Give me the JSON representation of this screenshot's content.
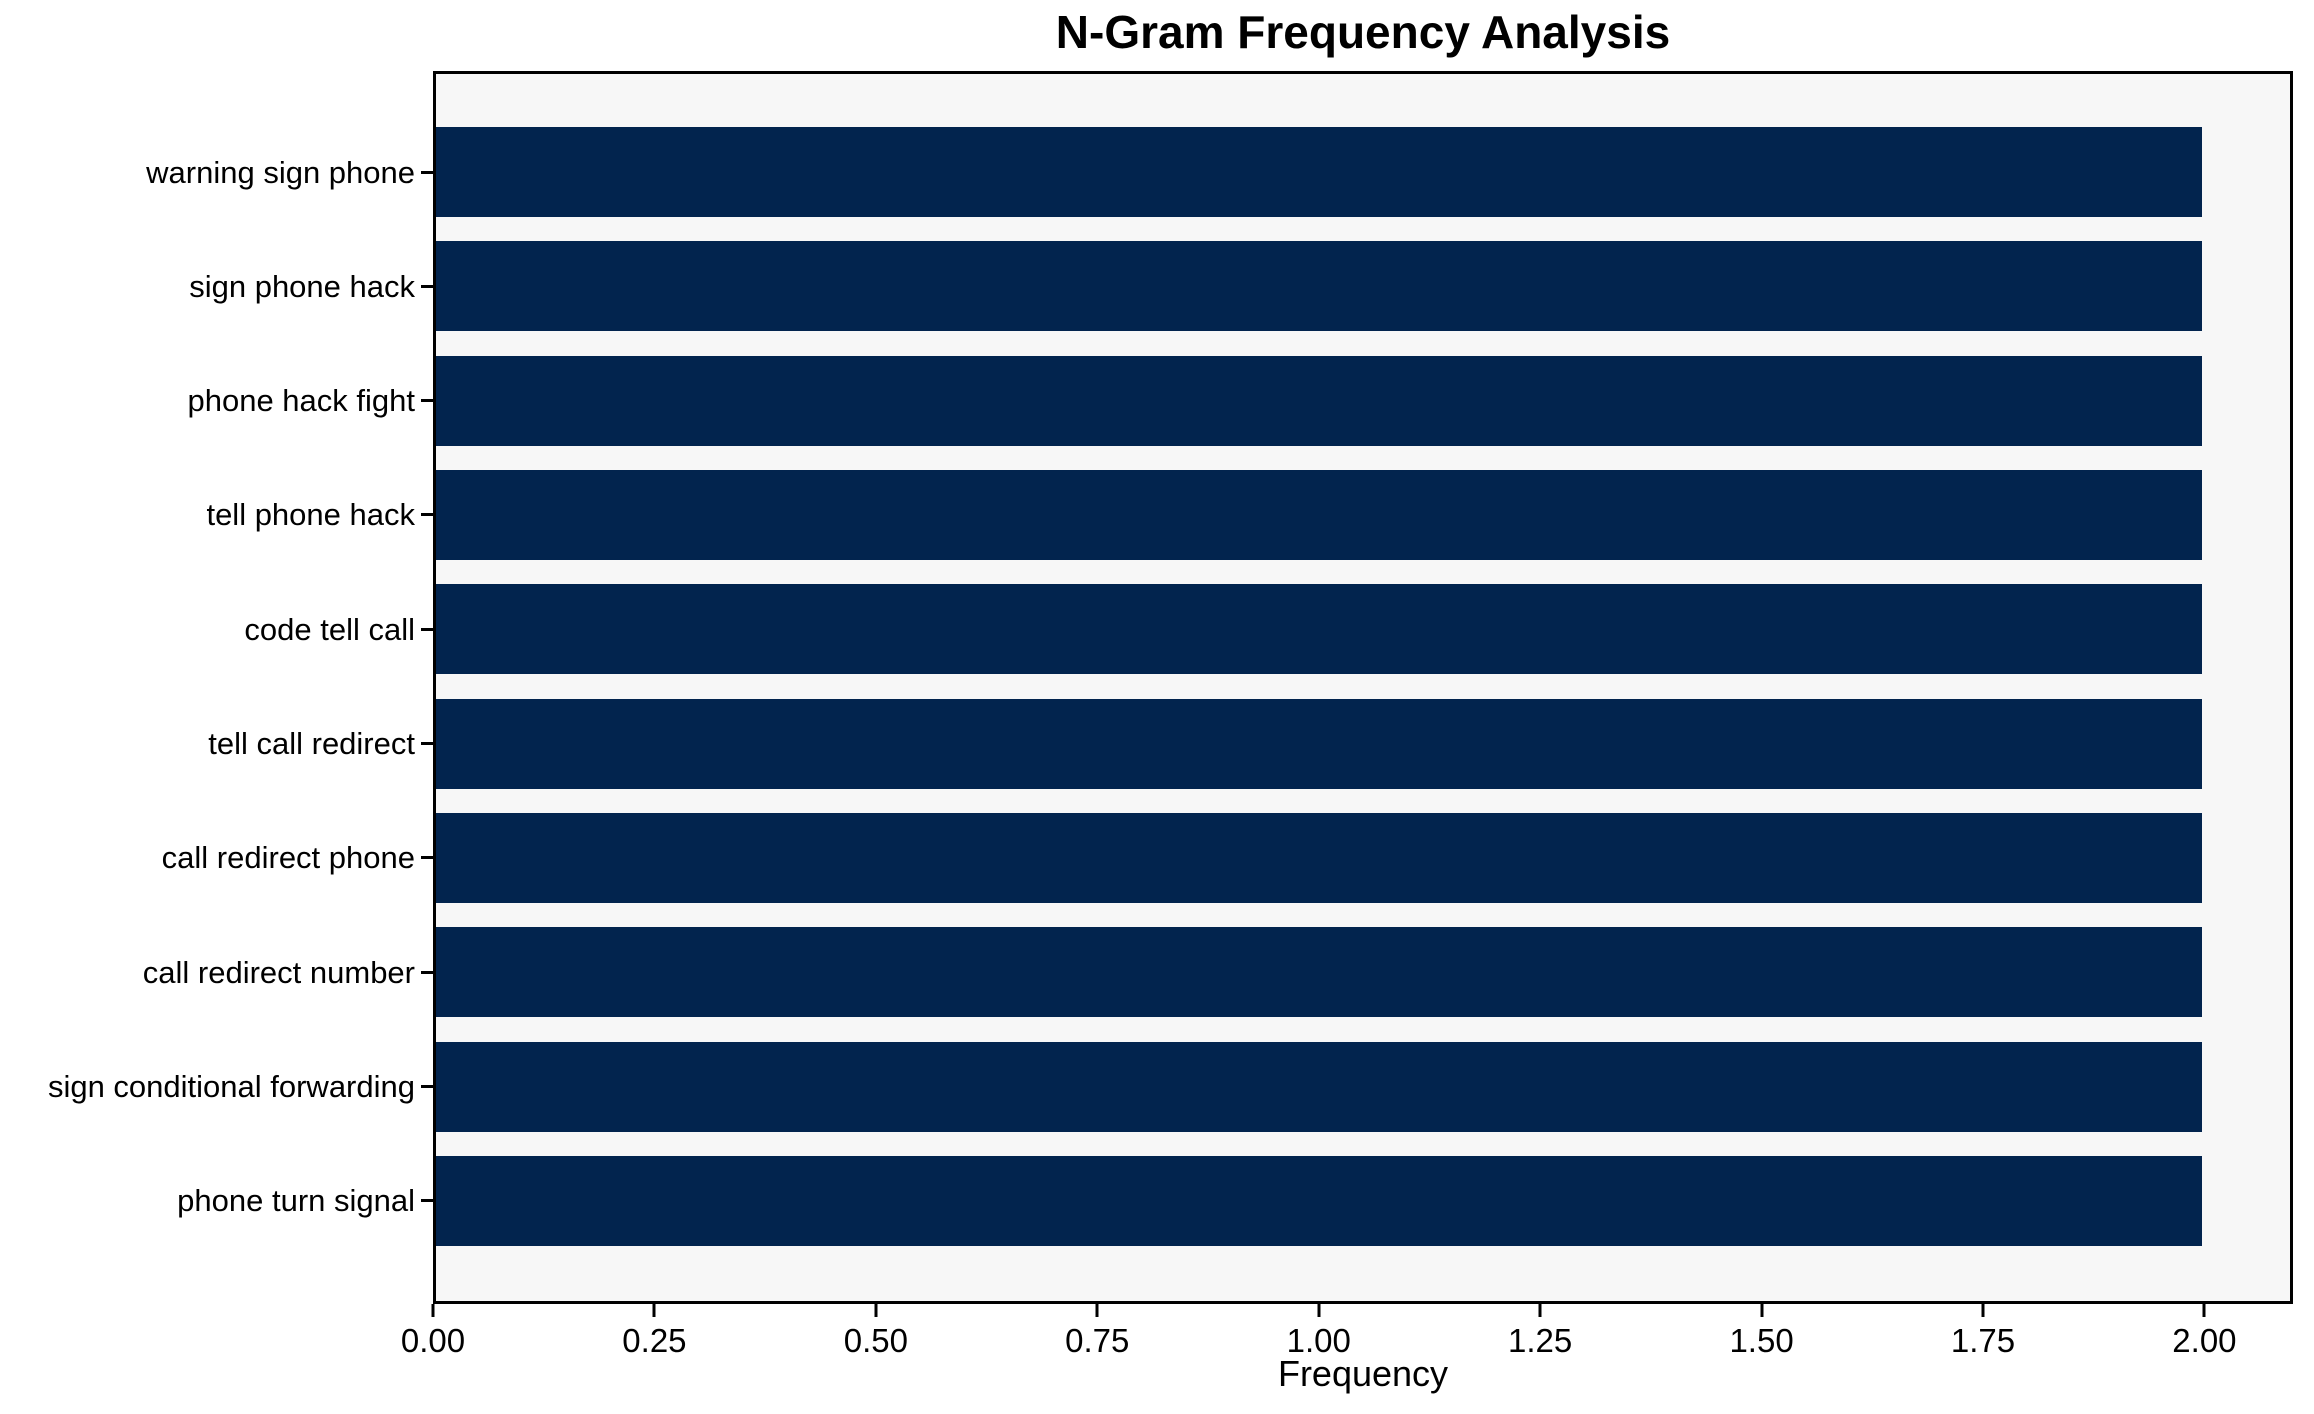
{
  "chart_data": {
    "type": "bar",
    "orientation": "horizontal",
    "title": "N-Gram Frequency Analysis",
    "xlabel": "Frequency",
    "ylabel": "",
    "categories": [
      "warning sign phone",
      "sign phone hack",
      "phone hack fight",
      "tell phone hack",
      "code tell call",
      "tell call redirect",
      "call redirect phone",
      "call redirect number",
      "sign conditional forwarding",
      "phone turn signal"
    ],
    "values": [
      2,
      2,
      2,
      2,
      2,
      2,
      2,
      2,
      2,
      2
    ],
    "x_tick_labels": [
      "0.00",
      "0.25",
      "0.50",
      "0.75",
      "1.00",
      "1.25",
      "1.50",
      "1.75",
      "2.00"
    ],
    "xlim": [
      0,
      2.1
    ],
    "grid": false,
    "legend": "none",
    "colors": {
      "bar": "#02244e",
      "plot_background": "#f7f7f7",
      "figure_background": "#ffffff",
      "axis": "#000000",
      "text": "#000000"
    }
  }
}
